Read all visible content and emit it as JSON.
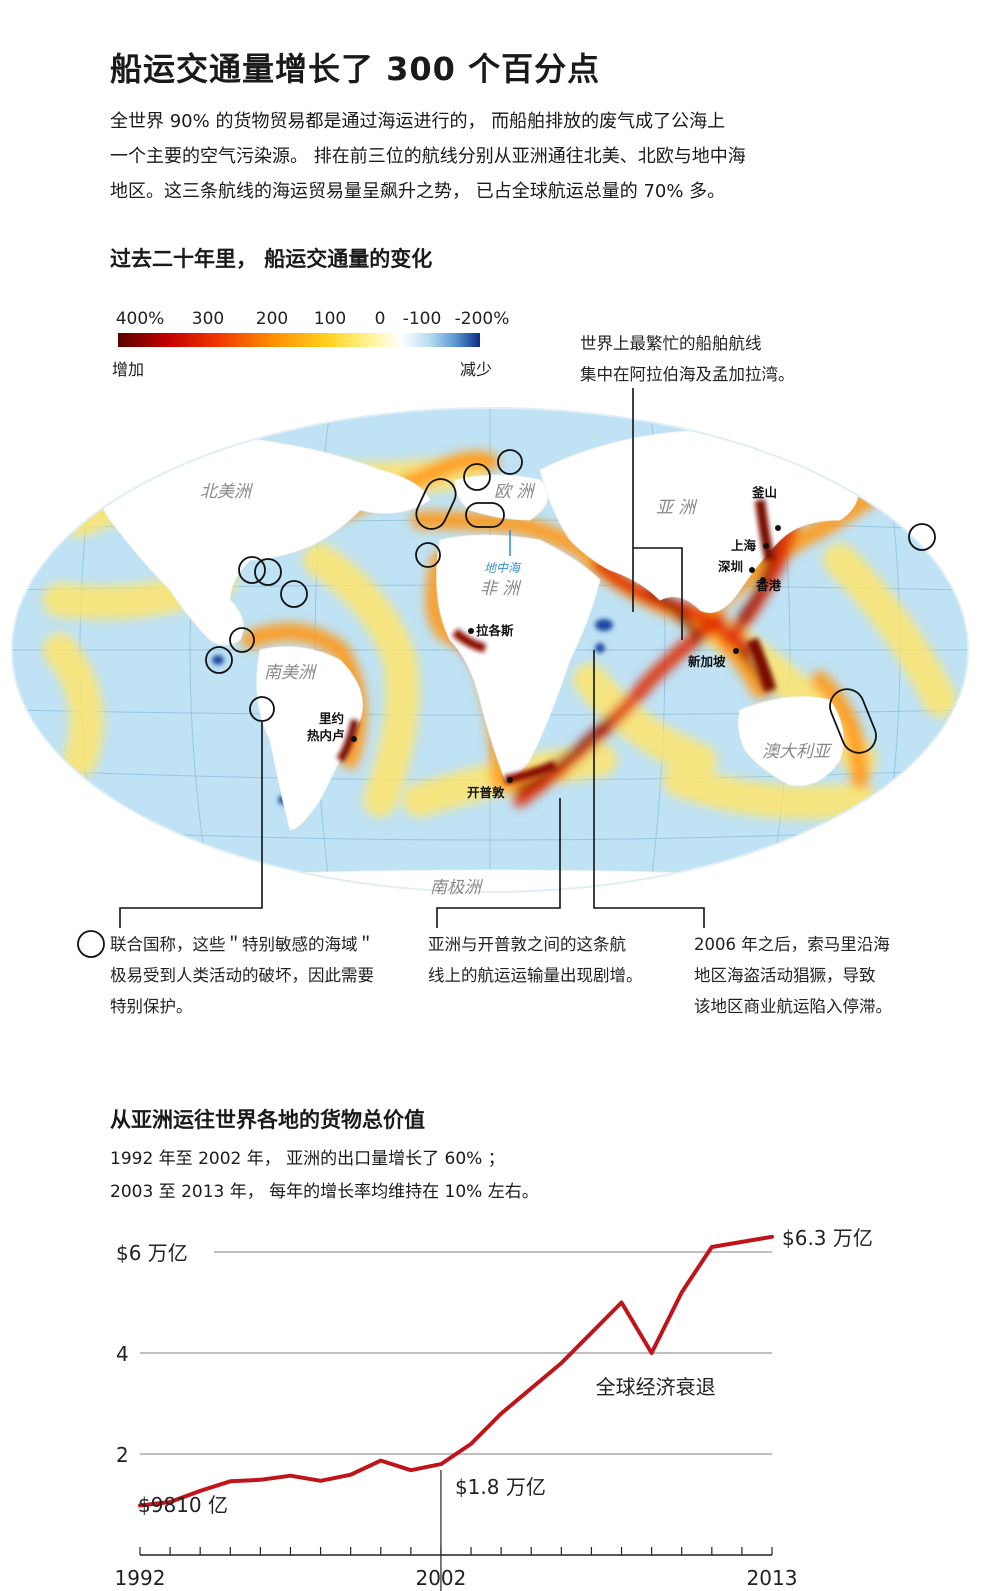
{
  "title": "船运交通量增长了 300 个百分点",
  "intro": [
    "全世界 90% 的货物贸易都是通过海运进行的， 而船舶排放的废气成了公海上",
    "一个主要的空气污染源。 排在前三位的航线分别从亚洲通往北美、北欧与地中海",
    "地区。这三条航线的海运贸易量呈飙升之势， 已占全球航运总量的 70% 多。"
  ],
  "map_section": {
    "subtitle": "过去二十年里， 船运交通量的变化",
    "legend": {
      "ticks": [
        "400%",
        "300",
        "200",
        "100",
        "0",
        "-100",
        "-200%"
      ],
      "left_label": "增加",
      "right_label": "减少",
      "colors": [
        "#5a0000",
        "#c40000",
        "#ff8a00",
        "#ffd21e",
        "#ffffff",
        "#5c9bd0",
        "#0b2d86"
      ]
    },
    "callout_top": [
      "世界上最繁忙的船舶航线",
      "集中在阿拉伯海及孟加拉湾。"
    ],
    "continents": {
      "north_america": "北美洲",
      "europe": "欧 洲",
      "asia": "亚 洲",
      "africa": "非 洲",
      "south_america": "南美洲",
      "australia": "澳大利亚",
      "antarctica": "南极洲",
      "mediterranean": "地中海"
    },
    "cities": {
      "busan": "釜山",
      "shanghai": "上海",
      "shenzhen": "深圳",
      "hongkong": "香港",
      "singapore": "新加坡",
      "lagos": "拉各斯",
      "rio_line1": "里约",
      "rio_line2": "热内卢",
      "capetown": "开普敦"
    },
    "notes": {
      "sensitive": [
        "联合国称，这些＂特别敏感的海域＂",
        "极易受到人类活动的破坏，因此需要",
        "特别保护。"
      ],
      "capetown_route": [
        "亚洲与开普敦之间的这条航",
        "线上的航运运输量出现剧增。"
      ],
      "somalia": [
        "2006 年之后，索马里沿海",
        "地区海盗活动猖獗，导致",
        "该地区商业航运陷入停滞。"
      ]
    }
  },
  "chart_section": {
    "subtitle": "从亚洲运往世界各地的货物总价值",
    "desc": [
      "1992 年至 2002 年， 亚洲的出口量增长了 60% ；",
      "2003 至 2013 年， 每年的增长率均维持在 10% 左右。"
    ]
  },
  "chart_data": {
    "type": "line",
    "title": "从亚洲运往世界各地的货物总价值",
    "x": [
      1992,
      1993,
      1994,
      1995,
      1996,
      1997,
      1998,
      1999,
      2000,
      2001,
      2002,
      2003,
      2004,
      2005,
      2006,
      2007,
      2008,
      2009,
      2010,
      2011,
      2012,
      2013
    ],
    "series": [
      {
        "values": [
          0.98,
          1.05,
          1.27,
          1.46,
          1.49,
          1.57,
          1.47,
          1.59,
          1.87,
          1.68,
          1.8,
          2.2,
          2.8,
          3.3,
          3.8,
          4.4,
          5.0,
          4.0,
          5.2,
          6.1,
          6.2,
          6.3
        ]
      }
    ],
    "xlim": [
      1992,
      2013
    ],
    "ylim": [
      0,
      6
    ],
    "x_tick_labels": [
      "1992",
      "2002",
      "2013"
    ],
    "y_tick_labels": [
      {
        "value": 6,
        "label": "$6 万亿"
      },
      {
        "value": 4,
        "label": "4"
      },
      {
        "value": 2,
        "label": "2"
      }
    ],
    "annotations": {
      "start": "$9810 亿",
      "mid": "$1.8 万亿",
      "end": "$6.3 万亿",
      "recession": "全球经济衰退"
    },
    "line_color": "#c0141b",
    "grid": true
  }
}
